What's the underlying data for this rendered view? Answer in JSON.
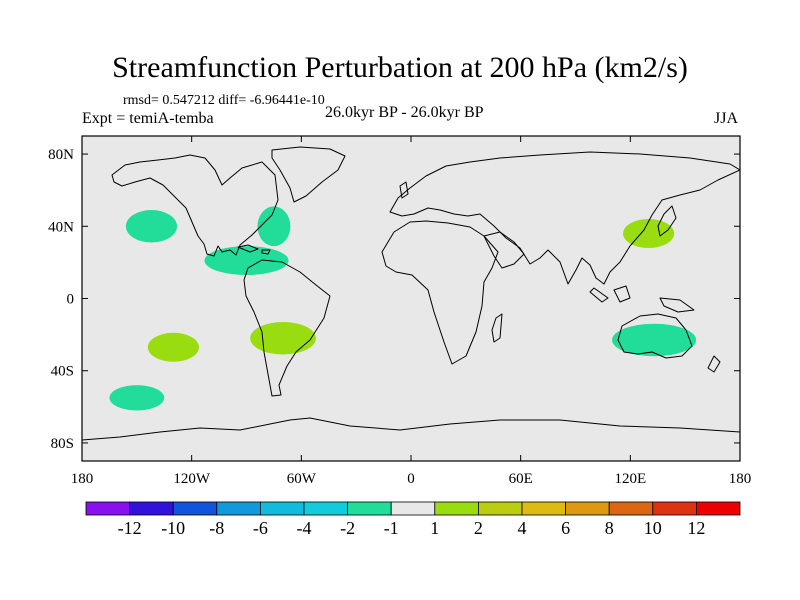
{
  "title": "Streamfunction Perturbation at 200 hPa (km2/s)",
  "stats": "rmsd= 0.547212 diff= -6.96441e-10",
  "subtitle_left": "Expt = temiA-temba",
  "subtitle_center": "26.0kyr BP - 26.0kyr BP",
  "subtitle_right": "JJA",
  "chart_data": {
    "type": "heatmap",
    "title": "Streamfunction Perturbation at 200 hPa (km2/s)",
    "projection": "cylindrical-equidistant",
    "xlim": [
      -180,
      180
    ],
    "ylim": [
      -90,
      90
    ],
    "x_ticks": [
      {
        "value": -180,
        "label": "180"
      },
      {
        "value": -120,
        "label": "120W"
      },
      {
        "value": -60,
        "label": "60W"
      },
      {
        "value": 0,
        "label": "0"
      },
      {
        "value": 60,
        "label": "60E"
      },
      {
        "value": 120,
        "label": "120E"
      },
      {
        "value": 180,
        "label": "180"
      }
    ],
    "y_ticks": [
      {
        "value": 80,
        "label": "80N"
      },
      {
        "value": 40,
        "label": "40N"
      },
      {
        "value": 0,
        "label": "0"
      },
      {
        "value": -40,
        "label": "40S"
      },
      {
        "value": -80,
        "label": "80S"
      }
    ],
    "background_level": "-1 to 1",
    "background_color": "#e8e8e8",
    "anomaly_regions": [
      {
        "name": "north-pacific-low",
        "lon": -142,
        "lat": 40,
        "lon_radius": 14,
        "lat_radius": 9,
        "level": "-2 to -1",
        "color": "#22dd99"
      },
      {
        "name": "north-atlantic-low",
        "lon": -75,
        "lat": 40,
        "lon_radius": 9,
        "lat_radius": 11,
        "level": "-2 to -1",
        "color": "#22dd99"
      },
      {
        "name": "caribbean-low",
        "lon": -90,
        "lat": 21,
        "lon_radius": 23,
        "lat_radius": 8,
        "level": "-2 to -1",
        "color": "#22dd99"
      },
      {
        "name": "south-pacific-low",
        "lon": -150,
        "lat": -55,
        "lon_radius": 15,
        "lat_radius": 7,
        "level": "-2 to -1",
        "color": "#22dd99"
      },
      {
        "name": "australia-low",
        "lon": 133,
        "lat": -23,
        "lon_radius": 23,
        "lat_radius": 9,
        "level": "-2 to -1",
        "color": "#22dd99"
      },
      {
        "name": "east-asia-high",
        "lon": 130,
        "lat": 36,
        "lon_radius": 14,
        "lat_radius": 8,
        "level": "1 to 2",
        "color": "#99dd11"
      },
      {
        "name": "south-pacific-high",
        "lon": -130,
        "lat": -27,
        "lon_radius": 14,
        "lat_radius": 8,
        "level": "1 to 2",
        "color": "#99dd11"
      },
      {
        "name": "south-america-high",
        "lon": -70,
        "lat": -22,
        "lon_radius": 18,
        "lat_radius": 9,
        "level": "1 to 2",
        "color": "#99dd11"
      }
    ],
    "colorbar": {
      "colors": [
        "#8811ee",
        "#3311dd",
        "#1155dd",
        "#1199dd",
        "#11bbdd",
        "#11ccdd",
        "#22dd99",
        "#e8e8e8",
        "#99dd11",
        "#bbcc11",
        "#ddbb11",
        "#dd9911",
        "#dd6611",
        "#dd3311",
        "#ee0000"
      ],
      "labels": [
        "-12",
        "-10",
        "-8",
        "-6",
        "-4",
        "-2",
        "-1",
        "1",
        "2",
        "4",
        "6",
        "8",
        "10",
        "12"
      ]
    }
  }
}
